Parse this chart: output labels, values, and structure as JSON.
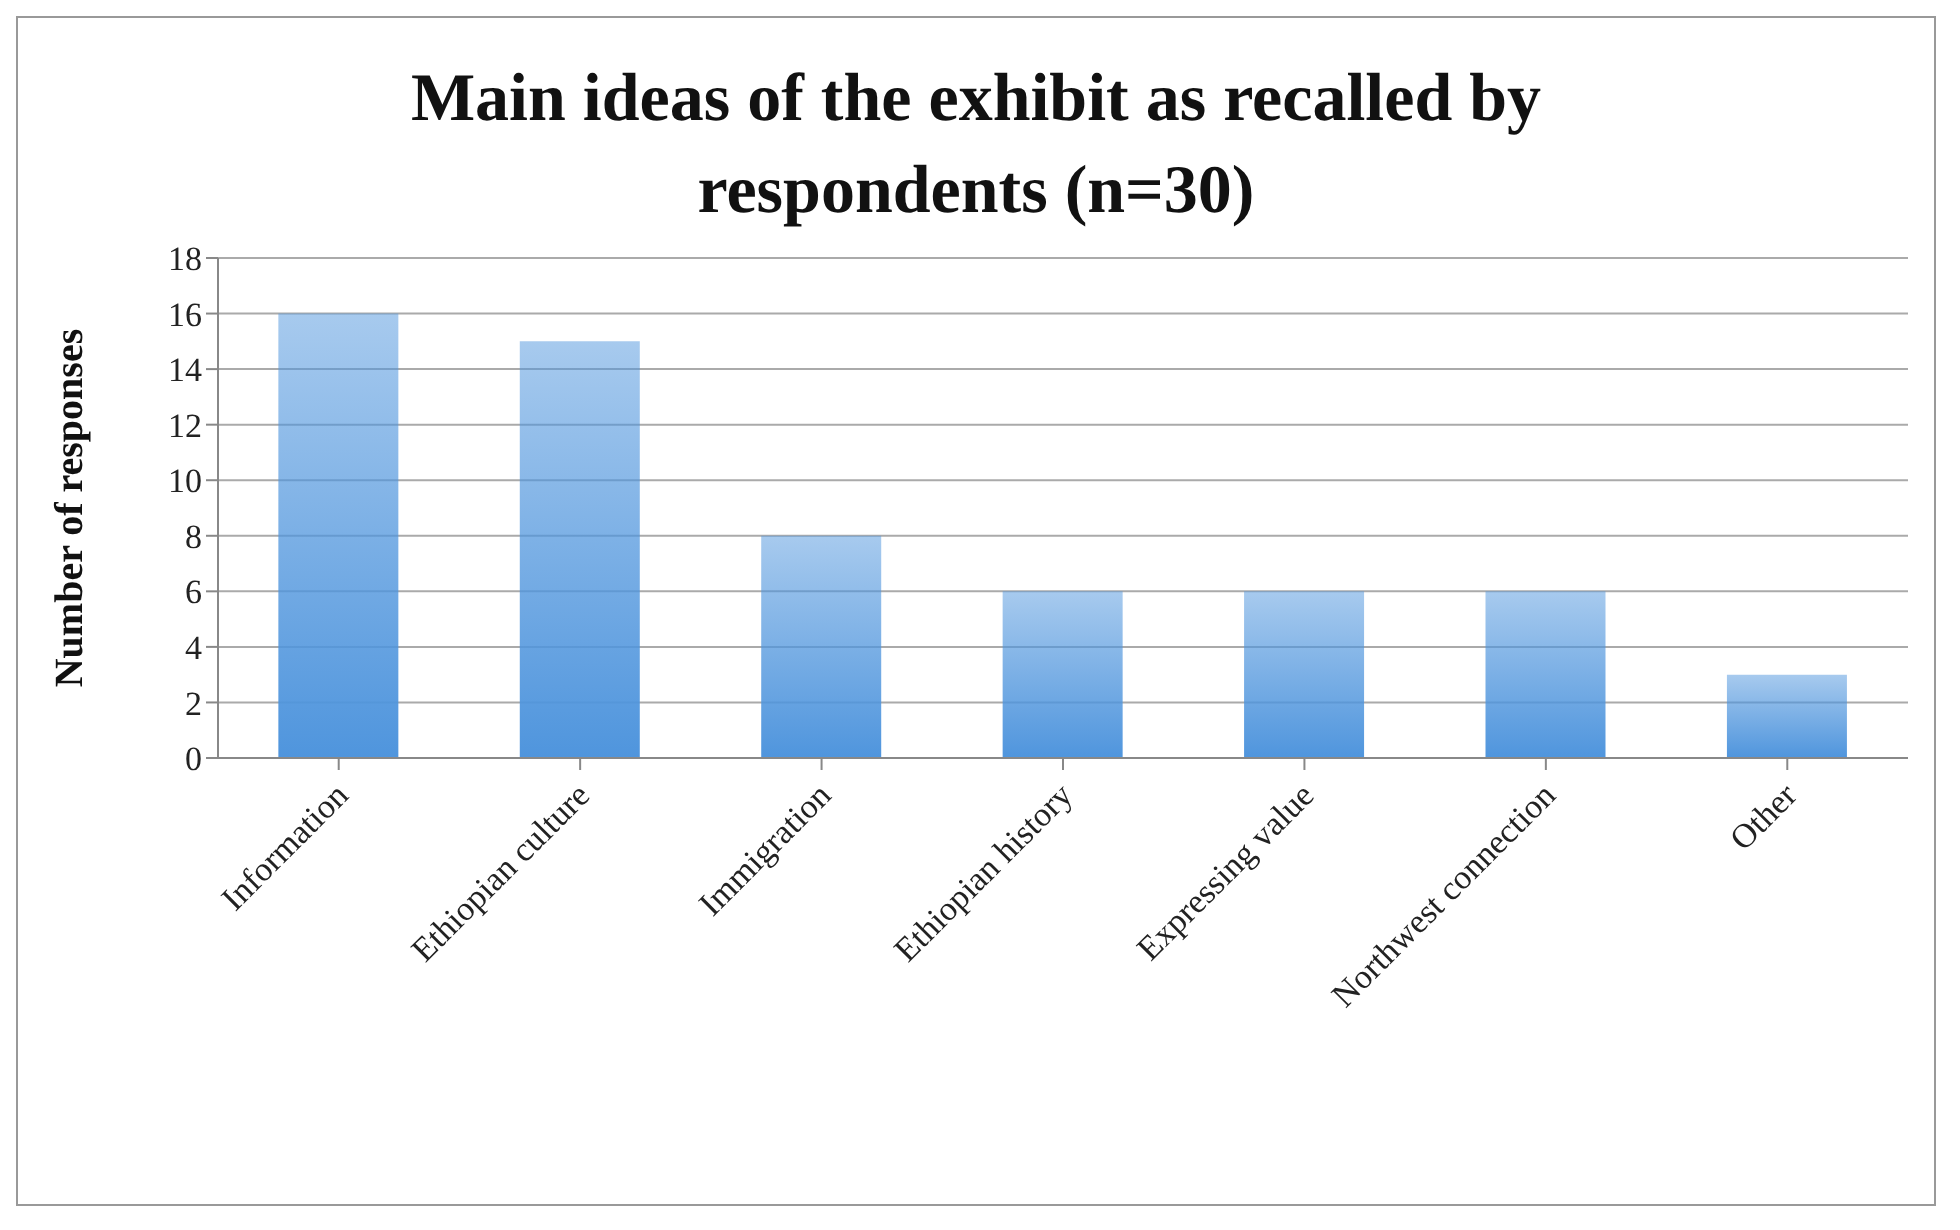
{
  "chart_data": {
    "type": "bar",
    "title": "Main ideas of the exhibit as recalled by respondents (n=30)",
    "ylabel": "Number of responses",
    "categories": [
      "Information",
      "Ethiopian culture",
      "Immigration",
      "Ethiopian history",
      "Expressing value",
      "Northwest connection",
      "Other"
    ],
    "values": [
      16,
      15,
      8,
      6,
      6,
      6,
      3
    ],
    "color": "#4f95dd",
    "ylim": [
      0,
      18
    ],
    "yticks": [
      0,
      2,
      4,
      6,
      8,
      10,
      12,
      14,
      16,
      18
    ],
    "grid": "y"
  }
}
